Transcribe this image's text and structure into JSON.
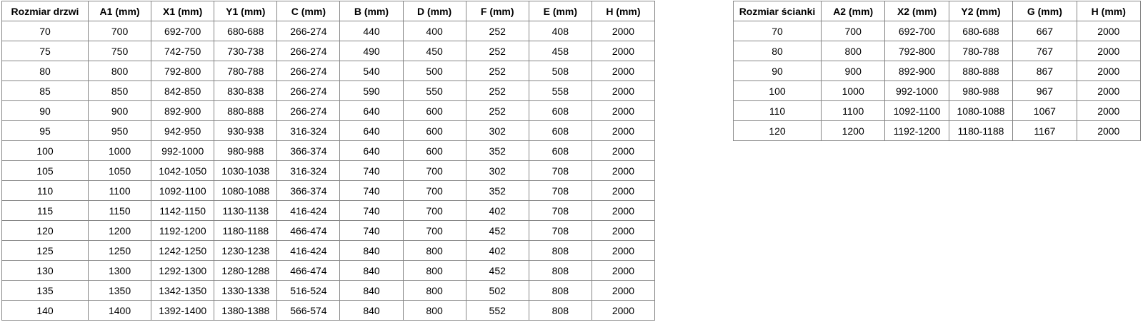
{
  "page": {
    "background": "#ffffff",
    "border_color": "#868686",
    "text_color": "#000000"
  },
  "door_table": {
    "headers": [
      "Rozmiar drzwi",
      "A1 (mm)",
      "X1 (mm)",
      "Y1 (mm)",
      "C (mm)",
      "B (mm)",
      "D (mm)",
      "F (mm)",
      "E (mm)",
      "H (mm)"
    ],
    "rows": [
      [
        "70",
        "700",
        "692-700",
        "680-688",
        "266-274",
        "440",
        "400",
        "252",
        "408",
        "2000"
      ],
      [
        "75",
        "750",
        "742-750",
        "730-738",
        "266-274",
        "490",
        "450",
        "252",
        "458",
        "2000"
      ],
      [
        "80",
        "800",
        "792-800",
        "780-788",
        "266-274",
        "540",
        "500",
        "252",
        "508",
        "2000"
      ],
      [
        "85",
        "850",
        "842-850",
        "830-838",
        "266-274",
        "590",
        "550",
        "252",
        "558",
        "2000"
      ],
      [
        "90",
        "900",
        "892-900",
        "880-888",
        "266-274",
        "640",
        "600",
        "252",
        "608",
        "2000"
      ],
      [
        "95",
        "950",
        "942-950",
        "930-938",
        "316-324",
        "640",
        "600",
        "302",
        "608",
        "2000"
      ],
      [
        "100",
        "1000",
        "992-1000",
        "980-988",
        "366-374",
        "640",
        "600",
        "352",
        "608",
        "2000"
      ],
      [
        "105",
        "1050",
        "1042-1050",
        "1030-1038",
        "316-324",
        "740",
        "700",
        "302",
        "708",
        "2000"
      ],
      [
        "110",
        "1100",
        "1092-1100",
        "1080-1088",
        "366-374",
        "740",
        "700",
        "352",
        "708",
        "2000"
      ],
      [
        "115",
        "1150",
        "1142-1150",
        "1130-1138",
        "416-424",
        "740",
        "700",
        "402",
        "708",
        "2000"
      ],
      [
        "120",
        "1200",
        "1192-1200",
        "1180-1188",
        "466-474",
        "740",
        "700",
        "452",
        "708",
        "2000"
      ],
      [
        "125",
        "1250",
        "1242-1250",
        "1230-1238",
        "416-424",
        "840",
        "800",
        "402",
        "808",
        "2000"
      ],
      [
        "130",
        "1300",
        "1292-1300",
        "1280-1288",
        "466-474",
        "840",
        "800",
        "452",
        "808",
        "2000"
      ],
      [
        "135",
        "1350",
        "1342-1350",
        "1330-1338",
        "516-524",
        "840",
        "800",
        "502",
        "808",
        "2000"
      ],
      [
        "140",
        "1400",
        "1392-1400",
        "1380-1388",
        "566-574",
        "840",
        "800",
        "552",
        "808",
        "2000"
      ]
    ]
  },
  "wall_table": {
    "headers": [
      "Rozmiar ścianki",
      "A2 (mm)",
      "X2 (mm)",
      "Y2 (mm)",
      "G (mm)",
      "H (mm)"
    ],
    "rows": [
      [
        "70",
        "700",
        "692-700",
        "680-688",
        "667",
        "2000"
      ],
      [
        "80",
        "800",
        "792-800",
        "780-788",
        "767",
        "2000"
      ],
      [
        "90",
        "900",
        "892-900",
        "880-888",
        "867",
        "2000"
      ],
      [
        "100",
        "1000",
        "992-1000",
        "980-988",
        "967",
        "2000"
      ],
      [
        "110",
        "1100",
        "1092-1100",
        "1080-1088",
        "1067",
        "2000"
      ],
      [
        "120",
        "1200",
        "1192-1200",
        "1180-1188",
        "1167",
        "2000"
      ]
    ]
  }
}
